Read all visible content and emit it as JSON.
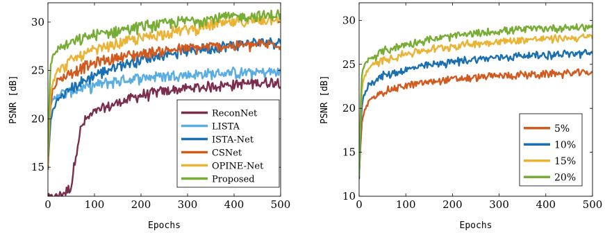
{
  "chart_data": [
    {
      "type": "line",
      "title": "",
      "xlabel": "Epochs",
      "ylabel": "PSNR [dB]",
      "xlim": [
        0,
        500
      ],
      "ylim": [
        12,
        32
      ],
      "xticks": [
        0,
        100,
        200,
        300,
        400,
        500
      ],
      "yticks": [
        15,
        20,
        25,
        30
      ],
      "legend_position": "bottom-right",
      "grid": false,
      "series": [
        {
          "name": "ReconNet",
          "color": "#7b2d4e",
          "x": [
            0,
            20,
            40,
            50,
            60,
            70,
            80,
            100,
            150,
            200,
            250,
            300,
            350,
            400,
            450,
            500
          ],
          "y": [
            12.0,
            12.1,
            12.7,
            13.2,
            16.5,
            19.0,
            20.0,
            20.8,
            21.8,
            22.6,
            23.0,
            23.3,
            23.5,
            23.7,
            23.9,
            24.0
          ]
        },
        {
          "name": "LISTA",
          "color": "#5aade3",
          "x": [
            0,
            5,
            10,
            20,
            50,
            100,
            150,
            200,
            250,
            300,
            350,
            400,
            450,
            500
          ],
          "y": [
            16.5,
            21.0,
            22.0,
            22.6,
            23.0,
            23.6,
            24.1,
            24.4,
            24.6,
            24.7,
            24.8,
            24.9,
            24.95,
            25.0
          ]
        },
        {
          "name": "ISTA-Net",
          "color": "#1a6fb0",
          "x": [
            0,
            5,
            10,
            20,
            50,
            100,
            150,
            200,
            250,
            300,
            350,
            400,
            450,
            500
          ],
          "y": [
            14.8,
            19.5,
            21.0,
            22.0,
            23.3,
            24.7,
            25.6,
            26.3,
            26.8,
            27.2,
            27.5,
            27.8,
            28.0,
            28.2
          ]
        },
        {
          "name": "CSNet",
          "color": "#d35a1e",
          "x": [
            0,
            5,
            10,
            20,
            50,
            100,
            150,
            200,
            250,
            300,
            350,
            400,
            450,
            500
          ],
          "y": [
            15.0,
            21.5,
            23.0,
            24.0,
            25.0,
            25.9,
            26.5,
            26.9,
            27.2,
            27.4,
            27.6,
            27.7,
            27.8,
            27.9
          ]
        },
        {
          "name": "OPINE-Net",
          "color": "#ebb334",
          "x": [
            0,
            5,
            10,
            20,
            50,
            100,
            150,
            200,
            250,
            300,
            350,
            400,
            450,
            500
          ],
          "y": [
            15.2,
            22.5,
            24.0,
            25.0,
            26.2,
            27.2,
            27.9,
            28.5,
            29.0,
            29.4,
            29.8,
            30.1,
            30.4,
            30.6
          ]
        },
        {
          "name": "Proposed",
          "color": "#77ad35",
          "x": [
            0,
            5,
            10,
            20,
            50,
            100,
            150,
            200,
            250,
            300,
            350,
            400,
            450,
            500
          ],
          "y": [
            16.0,
            25.5,
            26.5,
            27.3,
            28.0,
            28.8,
            29.3,
            29.7,
            30.0,
            30.3,
            30.5,
            30.7,
            30.8,
            30.9
          ]
        }
      ]
    },
    {
      "type": "line",
      "title": "",
      "xlabel": "Epochs",
      "ylabel": "PSNR [dB]",
      "xlim": [
        0,
        500
      ],
      "ylim": [
        10,
        32
      ],
      "xticks": [
        0,
        100,
        200,
        300,
        400,
        500
      ],
      "yticks": [
        10,
        15,
        20,
        25,
        30
      ],
      "legend_position": "bottom-right",
      "grid": false,
      "series": [
        {
          "name": "5%",
          "color": "#d35a1e",
          "x": [
            0,
            5,
            10,
            20,
            50,
            100,
            150,
            200,
            250,
            300,
            350,
            400,
            450,
            500
          ],
          "y": [
            12.5,
            18.0,
            19.5,
            20.8,
            22.0,
            22.7,
            23.1,
            23.4,
            23.6,
            23.8,
            23.9,
            24.0,
            24.1,
            24.2
          ]
        },
        {
          "name": "10%",
          "color": "#1a6fb0",
          "x": [
            0,
            5,
            10,
            20,
            50,
            100,
            150,
            200,
            250,
            300,
            350,
            400,
            450,
            500
          ],
          "y": [
            11.8,
            20.0,
            21.5,
            22.8,
            23.8,
            24.5,
            25.0,
            25.4,
            25.7,
            25.9,
            26.1,
            26.2,
            26.3,
            26.4
          ]
        },
        {
          "name": "15%",
          "color": "#ebb334",
          "x": [
            0,
            5,
            10,
            20,
            50,
            100,
            150,
            200,
            250,
            300,
            350,
            400,
            450,
            500
          ],
          "y": [
            12.3,
            22.0,
            23.5,
            24.6,
            25.6,
            26.3,
            26.8,
            27.2,
            27.5,
            27.7,
            27.9,
            28.0,
            28.1,
            28.2
          ]
        },
        {
          "name": "20%",
          "color": "#77ad35",
          "x": [
            0,
            5,
            10,
            20,
            50,
            100,
            150,
            200,
            250,
            300,
            350,
            400,
            450,
            500
          ],
          "y": [
            12.5,
            23.5,
            24.8,
            25.6,
            26.6,
            27.4,
            27.9,
            28.3,
            28.6,
            28.9,
            29.1,
            29.2,
            29.3,
            29.4
          ]
        }
      ]
    }
  ]
}
